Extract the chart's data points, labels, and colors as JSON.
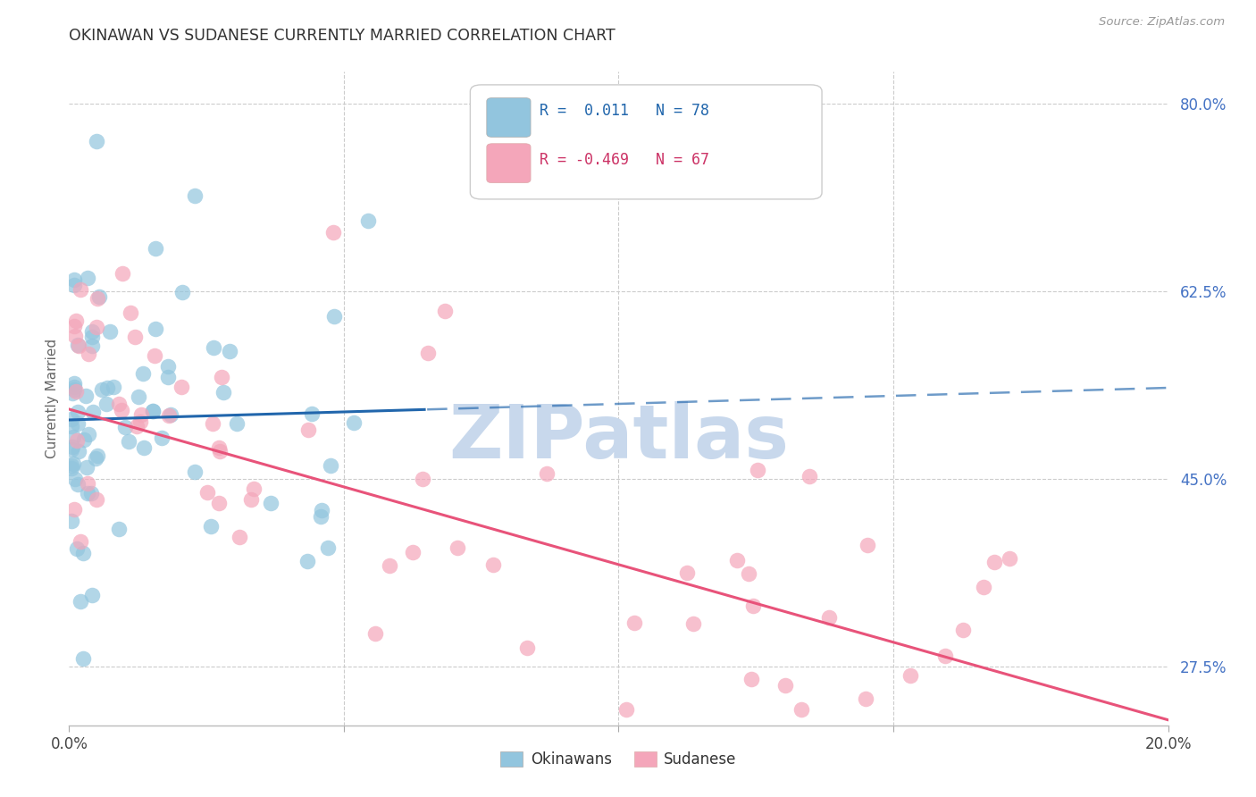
{
  "title": "OKINAWAN VS SUDANESE CURRENTLY MARRIED CORRELATION CHART",
  "source": "Source: ZipAtlas.com",
  "ylabel": "Currently Married",
  "ytick_vals": [
    27.5,
    45.0,
    62.5,
    80.0
  ],
  "ytick_labels": [
    "27.5%",
    "45.0%",
    "62.5%",
    "80.0%"
  ],
  "xlim": [
    0.0,
    20.0
  ],
  "ylim": [
    22.0,
    83.0
  ],
  "blue_color": "#92c5de",
  "pink_color": "#f4a6ba",
  "blue_line_color": "#2166ac",
  "pink_line_color": "#e8537a",
  "blue_line_intercept": 50.5,
  "blue_line_slope": 0.15,
  "blue_line_split": 6.5,
  "pink_line_intercept": 51.5,
  "pink_line_slope": -1.45,
  "watermark": "ZIPatlas",
  "watermark_color": "#c8d8ec",
  "legend_r1": "R =  0.011",
  "legend_n1": "N = 78",
  "legend_r2": "R = -0.469",
  "legend_n2": "N = 67"
}
